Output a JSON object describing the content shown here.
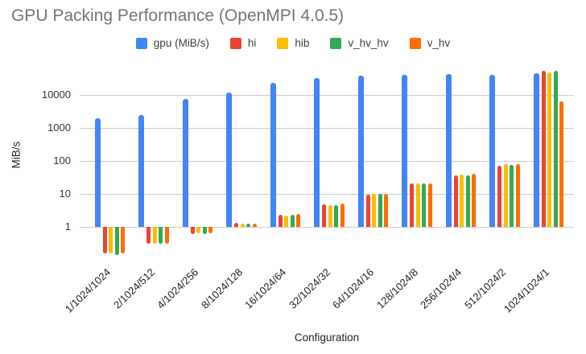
{
  "title": "GPU Packing Performance (OpenMPI 4.0.5)",
  "y_axis": {
    "title": "MiB/s",
    "tick_labels": [
      "1",
      "10",
      "100",
      "1000",
      "10000"
    ]
  },
  "x_axis": {
    "title": "Configuration"
  },
  "chart_data": {
    "type": "bar",
    "title": "GPU Packing Performance (OpenMPI 4.0.5)",
    "xlabel": "Configuration",
    "ylabel": "MiB/s",
    "y_scale": "log",
    "ylim": [
      0.1,
      60000
    ],
    "yticks": [
      1,
      10,
      100,
      1000,
      10000
    ],
    "grid": "horizontal",
    "legend_position": "top",
    "bar_baseline": 1,
    "categories": [
      "1/1024/1024",
      "2/1024/512",
      "4/1024/256",
      "8/1024/128",
      "16/1024/64",
      "32/1024/32",
      "64/1024/16",
      "128/1024/8",
      "256/1024/4",
      "512/1024/2",
      "1024/1024/1"
    ],
    "series": [
      {
        "name": "gpu (MiB/s)",
        "color": "#4285F4",
        "values": [
          2000,
          2500,
          7700,
          12000,
          23000,
          32000,
          38000,
          41000,
          43500,
          40000,
          47000
        ]
      },
      {
        "name": "hi",
        "color": "#EA4335",
        "values": [
          0.15,
          0.3,
          0.6,
          1.3,
          2.3,
          4.8,
          9.6,
          21,
          36,
          72,
          53000
        ]
      },
      {
        "name": "hib",
        "color": "#FBBC04",
        "values": [
          0.15,
          0.3,
          0.62,
          1.25,
          2.2,
          4.4,
          9.7,
          20,
          38,
          80,
          50000
        ]
      },
      {
        "name": "v_hv_hv",
        "color": "#34A853",
        "values": [
          0.14,
          0.3,
          0.6,
          1.2,
          2.3,
          4.6,
          9.7,
          20,
          37,
          77,
          53000
        ]
      },
      {
        "name": "v_hv",
        "color": "#FF6D01",
        "values": [
          0.15,
          0.3,
          0.62,
          1.25,
          2.4,
          5.0,
          10,
          21,
          40,
          78,
          6400
        ]
      }
    ]
  }
}
